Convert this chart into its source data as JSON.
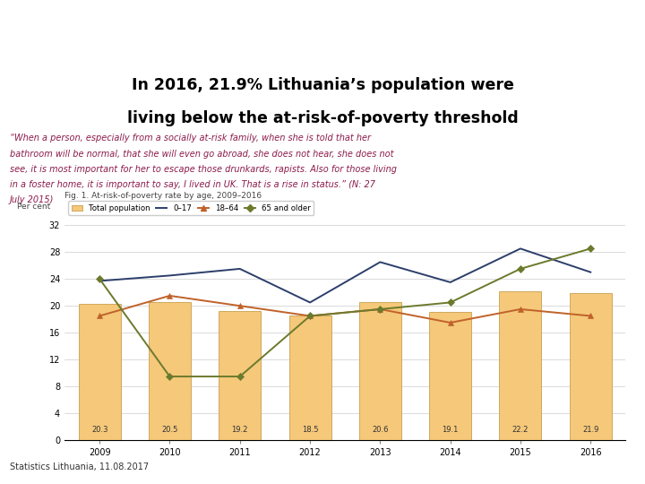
{
  "title_line1": "In 2016, 21.9% Lithuania’s population were",
  "title_line2": "living below the at-risk-of-poverty threshold",
  "quote_lines": [
    "“When a person, especially from a socially at-risk family, when she is told that her",
    "bathroom will be normal, that she will even go abroad, she does not hear, she does not",
    "see, it is most important for her to escape those drunkards, rapists. Also for those living",
    "in a foster home, it is important to say, I lived in UK. That is a rise in status.” (N: 27",
    "July 2015)"
  ],
  "fig_title": "Fig. 1. At-risk-of-poverty rate by age, 2009–2016",
  "ylabel": "Per cent",
  "footer": "Statistics Lithuania, 11.08.2017",
  "years": [
    2009,
    2010,
    2011,
    2012,
    2013,
    2014,
    2015,
    2016
  ],
  "bar_values": [
    20.3,
    20.5,
    19.2,
    18.5,
    20.6,
    19.1,
    22.2,
    21.9
  ],
  "bar_color": "#F5C87A",
  "bar_edge_color": "#C8A050",
  "line_0_17": [
    23.7,
    24.5,
    25.5,
    20.5,
    26.5,
    23.5,
    28.5,
    25.0
  ],
  "line_18_64": [
    18.5,
    21.5,
    20.0,
    18.5,
    19.5,
    17.5,
    19.5,
    18.5
  ],
  "line_65plus": [
    24.0,
    9.5,
    9.5,
    18.5,
    19.5,
    20.5,
    25.5,
    28.5
  ],
  "color_0_17": "#2C3E6B",
  "color_18_64": "#C0622A",
  "color_65plus": "#6B7A2C",
  "header_bg_color": "#8B1A4A",
  "title_color": "#000000",
  "quote_color": "#8B1A4A",
  "ylim": [
    0,
    32
  ],
  "yticks": [
    0,
    4,
    8,
    12,
    16,
    20,
    24,
    28,
    32
  ],
  "legend_labels": [
    "Total population",
    "0–17",
    "18–64",
    "65 and older"
  ]
}
